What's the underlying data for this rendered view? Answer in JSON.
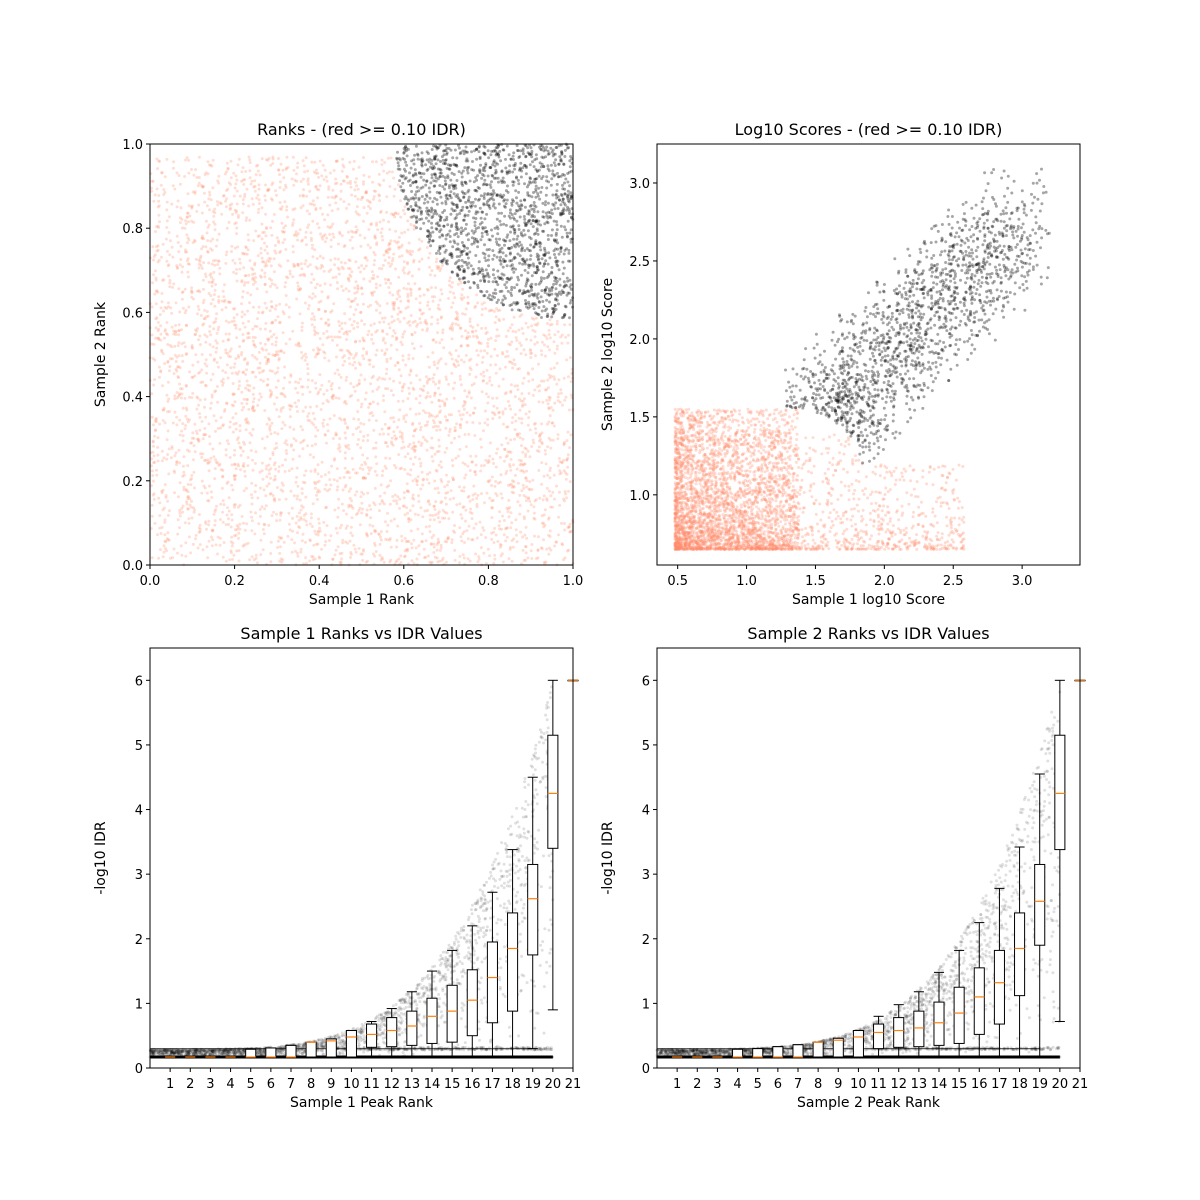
{
  "chart_data": [
    {
      "type": "scatter",
      "title": "Ranks - (red >= 0.10 IDR)",
      "xlabel": "Sample 1 Rank",
      "ylabel": "Sample 2 Rank",
      "xlim": [
        0,
        1
      ],
      "ylim": [
        0,
        1
      ],
      "xticks": [
        "0.0",
        "0.2",
        "0.4",
        "0.6",
        "0.8",
        "1.0"
      ],
      "yticks": [
        "0.0",
        "0.2",
        "0.4",
        "0.6",
        "0.8",
        "1.0"
      ],
      "grid": false,
      "series": [
        {
          "color": "#ff8c69",
          "region": "IDR >= 0.10; fills ranks below arc centered (1,1), radius ~0.42",
          "approx_points": 4000
        },
        {
          "color": "#000000",
          "region": "IDR < 0.10; top-right corner within arc centered (1,1), radius ~0.42",
          "approx_points": 1500
        }
      ]
    },
    {
      "type": "scatter",
      "title": "Log10 Scores - (red >= 0.10 IDR)",
      "xlabel": "Sample 1 log10 Score",
      "ylabel": "Sample 2 log10 Score",
      "xlim": [
        0.35,
        3.42
      ],
      "ylim": [
        0.55,
        3.25
      ],
      "xticks": [
        "0.5",
        "1.0",
        "1.5",
        "2.0",
        "2.5",
        "3.0"
      ],
      "yticks": [
        "1.0",
        "1.5",
        "2.0",
        "2.5",
        "3.0"
      ],
      "grid": false,
      "series": [
        {
          "color": "#ff8c69",
          "region": "x 0.48-2.6, y 0.65-1.55, dense near (0.5-1.3, 0.65-1.5)",
          "approx_points": 4000
        },
        {
          "color": "#000000",
          "region": "x 1.25-3.2, y 1.2-3.1, positively correlated",
          "approx_points": 1600
        }
      ]
    },
    {
      "type": "box",
      "title": "Sample 1 Ranks vs IDR Values",
      "xlabel": "Sample 1 Peak Rank",
      "ylabel": "-log10 IDR",
      "xlim": [
        0,
        21
      ],
      "ylim": [
        0,
        6.5
      ],
      "xticks": [
        "1",
        "2",
        "3",
        "4",
        "5",
        "6",
        "7",
        "8",
        "9",
        "10",
        "11",
        "12",
        "13",
        "14",
        "15",
        "16",
        "17",
        "18",
        "19",
        "20",
        "21"
      ],
      "yticks": [
        "0",
        "1",
        "2",
        "3",
        "4",
        "5",
        "6"
      ],
      "grid": false,
      "boxes": [
        {
          "x": 1,
          "q1": 0.17,
          "median": 0.17,
          "q3": 0.17,
          "lo": 0.17,
          "hi": 0.17
        },
        {
          "x": 2,
          "q1": 0.17,
          "median": 0.17,
          "q3": 0.17,
          "lo": 0.17,
          "hi": 0.17
        },
        {
          "x": 3,
          "q1": 0.17,
          "median": 0.17,
          "q3": 0.17,
          "lo": 0.17,
          "hi": 0.17
        },
        {
          "x": 4,
          "q1": 0.17,
          "median": 0.17,
          "q3": 0.17,
          "lo": 0.17,
          "hi": 0.17
        },
        {
          "x": 5,
          "q1": 0.17,
          "median": 0.17,
          "q3": 0.29,
          "lo": 0.17,
          "hi": 0.29
        },
        {
          "x": 6,
          "q1": 0.17,
          "median": 0.17,
          "q3": 0.31,
          "lo": 0.17,
          "hi": 0.31
        },
        {
          "x": 7,
          "q1": 0.17,
          "median": 0.17,
          "q3": 0.35,
          "lo": 0.17,
          "hi": 0.35
        },
        {
          "x": 8,
          "q1": 0.17,
          "median": 0.4,
          "q3": 0.4,
          "lo": 0.17,
          "hi": 0.4
        },
        {
          "x": 9,
          "q1": 0.17,
          "median": 0.42,
          "q3": 0.45,
          "lo": 0.17,
          "hi": 0.45
        },
        {
          "x": 10,
          "q1": 0.17,
          "median": 0.48,
          "q3": 0.58,
          "lo": 0.17,
          "hi": 0.58
        },
        {
          "x": 11,
          "q1": 0.32,
          "median": 0.52,
          "q3": 0.68,
          "lo": 0.17,
          "hi": 0.72
        },
        {
          "x": 12,
          "q1": 0.33,
          "median": 0.58,
          "q3": 0.78,
          "lo": 0.17,
          "hi": 0.92
        },
        {
          "x": 13,
          "q1": 0.35,
          "median": 0.65,
          "q3": 0.88,
          "lo": 0.17,
          "hi": 1.18
        },
        {
          "x": 14,
          "q1": 0.38,
          "median": 0.8,
          "q3": 1.08,
          "lo": 0.17,
          "hi": 1.5
        },
        {
          "x": 15,
          "q1": 0.4,
          "median": 0.88,
          "q3": 1.28,
          "lo": 0.17,
          "hi": 1.82
        },
        {
          "x": 16,
          "q1": 0.5,
          "median": 1.05,
          "q3": 1.52,
          "lo": 0.17,
          "hi": 2.2
        },
        {
          "x": 17,
          "q1": 0.7,
          "median": 1.4,
          "q3": 1.95,
          "lo": 0.17,
          "hi": 2.72
        },
        {
          "x": 18,
          "q1": 0.88,
          "median": 1.85,
          "q3": 2.4,
          "lo": 0.17,
          "hi": 3.38
        },
        {
          "x": 19,
          "q1": 1.75,
          "median": 2.62,
          "q3": 3.15,
          "lo": 0.3,
          "hi": 4.5
        },
        {
          "x": 20,
          "q1": 3.4,
          "median": 4.25,
          "q3": 5.15,
          "lo": 0.9,
          "hi": 6.0
        },
        {
          "x": 21,
          "q1": 6.0,
          "median": 6.0,
          "q3": 6.0,
          "lo": 6.0,
          "hi": 6.0
        }
      ]
    },
    {
      "type": "box",
      "title": "Sample 2 Ranks vs IDR Values",
      "xlabel": "Sample 2 Peak Rank",
      "ylabel": "-log10 IDR",
      "xlim": [
        0,
        21
      ],
      "ylim": [
        0,
        6.5
      ],
      "xticks": [
        "1",
        "2",
        "3",
        "4",
        "5",
        "6",
        "7",
        "8",
        "9",
        "10",
        "11",
        "12",
        "13",
        "14",
        "15",
        "16",
        "17",
        "18",
        "19",
        "20",
        "21"
      ],
      "yticks": [
        "0",
        "1",
        "2",
        "3",
        "4",
        "5",
        "6"
      ],
      "grid": false,
      "boxes": [
        {
          "x": 1,
          "q1": 0.17,
          "median": 0.17,
          "q3": 0.17,
          "lo": 0.17,
          "hi": 0.17
        },
        {
          "x": 2,
          "q1": 0.17,
          "median": 0.17,
          "q3": 0.17,
          "lo": 0.17,
          "hi": 0.17
        },
        {
          "x": 3,
          "q1": 0.17,
          "median": 0.17,
          "q3": 0.17,
          "lo": 0.17,
          "hi": 0.17
        },
        {
          "x": 4,
          "q1": 0.17,
          "median": 0.17,
          "q3": 0.29,
          "lo": 0.17,
          "hi": 0.29
        },
        {
          "x": 5,
          "q1": 0.17,
          "median": 0.17,
          "q3": 0.3,
          "lo": 0.17,
          "hi": 0.3
        },
        {
          "x": 6,
          "q1": 0.17,
          "median": 0.17,
          "q3": 0.33,
          "lo": 0.17,
          "hi": 0.33
        },
        {
          "x": 7,
          "q1": 0.17,
          "median": 0.17,
          "q3": 0.36,
          "lo": 0.17,
          "hi": 0.36
        },
        {
          "x": 8,
          "q1": 0.17,
          "median": 0.4,
          "q3": 0.4,
          "lo": 0.17,
          "hi": 0.4
        },
        {
          "x": 9,
          "q1": 0.17,
          "median": 0.43,
          "q3": 0.46,
          "lo": 0.17,
          "hi": 0.46
        },
        {
          "x": 10,
          "q1": 0.17,
          "median": 0.48,
          "q3": 0.58,
          "lo": 0.17,
          "hi": 0.58
        },
        {
          "x": 11,
          "q1": 0.3,
          "median": 0.55,
          "q3": 0.68,
          "lo": 0.17,
          "hi": 0.8
        },
        {
          "x": 12,
          "q1": 0.32,
          "median": 0.58,
          "q3": 0.78,
          "lo": 0.17,
          "hi": 0.98
        },
        {
          "x": 13,
          "q1": 0.33,
          "median": 0.62,
          "q3": 0.88,
          "lo": 0.17,
          "hi": 1.18
        },
        {
          "x": 14,
          "q1": 0.35,
          "median": 0.7,
          "q3": 1.02,
          "lo": 0.17,
          "hi": 1.48
        },
        {
          "x": 15,
          "q1": 0.38,
          "median": 0.85,
          "q3": 1.25,
          "lo": 0.17,
          "hi": 1.82
        },
        {
          "x": 16,
          "q1": 0.52,
          "median": 1.1,
          "q3": 1.55,
          "lo": 0.17,
          "hi": 2.25
        },
        {
          "x": 17,
          "q1": 0.68,
          "median": 1.32,
          "q3": 1.82,
          "lo": 0.17,
          "hi": 2.78
        },
        {
          "x": 18,
          "q1": 1.12,
          "median": 1.85,
          "q3": 2.4,
          "lo": 0.17,
          "hi": 3.42
        },
        {
          "x": 19,
          "q1": 1.9,
          "median": 2.58,
          "q3": 3.15,
          "lo": 0.17,
          "hi": 4.55
        },
        {
          "x": 20,
          "q1": 3.38,
          "median": 4.25,
          "q3": 5.15,
          "lo": 0.72,
          "hi": 6.0
        },
        {
          "x": 21,
          "q1": 6.0,
          "median": 6.0,
          "q3": 6.0,
          "lo": 6.0,
          "hi": 6.0
        }
      ]
    }
  ]
}
